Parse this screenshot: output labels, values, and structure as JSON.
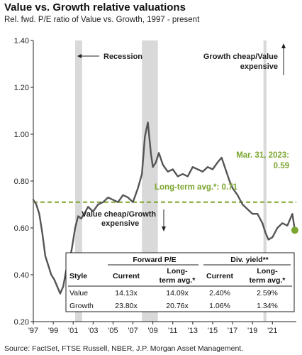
{
  "title": "Value vs. Growth relative valuations",
  "subtitle": "Rel. fwd. P/E ratio of Value vs. Growth, 1997 - present",
  "source": "Source: FactSet, FTSE Russell, NBER, J.P. Morgan Asset Management.",
  "colors": {
    "line": "#555555",
    "avg_line": "#7aa52e",
    "current_dot": "#7aa52e",
    "recession": "#d9d9d9",
    "axis": "#222222"
  },
  "annotations": {
    "recession": "Recession",
    "growth_cheap_1": "Growth cheap/Value",
    "growth_cheap_2": "expensive",
    "value_cheap_1": "Value cheap/Growth",
    "value_cheap_2": "expensive",
    "current_1": "Mar. 31, 2023:",
    "current_2": "0.59",
    "long_term_avg": "Long-term avg.*:  0.71"
  },
  "table": {
    "group_headers": [
      "Forward P/E",
      "Div. yield**"
    ],
    "col_headers": [
      "Style",
      "Current",
      "Long-",
      "term avg.*",
      "Current",
      "Long-",
      "term avg.*"
    ],
    "rows": [
      [
        "Value",
        "14.13x",
        "14.09x",
        "2.40%",
        "2.59%"
      ],
      [
        "Growth",
        "23.80x",
        "20.76x",
        "1.06%",
        "1.34%"
      ]
    ]
  },
  "chart_data": {
    "type": "line",
    "title": "Value vs. Growth relative valuations",
    "subtitle": "Rel. fwd. P/E ratio of Value vs. Growth, 1997 - present",
    "x_tick_labels": [
      "'97",
      "'99",
      "'01",
      "'03",
      "'05",
      "'07",
      "'09",
      "'11",
      "'13",
      "'15",
      "'17",
      "'19",
      "'21"
    ],
    "y_tick_labels": [
      "0.20",
      "0.40",
      "0.60",
      "0.80",
      "1.00",
      "1.20",
      "1.40"
    ],
    "xlim": [
      1997,
      2023.4
    ],
    "ylim": [
      0.2,
      1.4
    ],
    "recessions": [
      [
        2001.2,
        2001.9
      ],
      [
        2007.9,
        2009.5
      ],
      [
        2020.1,
        2020.4
      ]
    ],
    "long_term_avg": 0.71,
    "current": {
      "x": 2023.25,
      "y": 0.59
    },
    "series": [
      {
        "x": [
          1997.0,
          1997.3,
          1997.6,
          1997.9,
          1998.2,
          1998.5,
          1998.8,
          1999.1,
          1999.4,
          1999.7,
          2000.0,
          2000.3,
          2000.6,
          2000.9,
          2001.2,
          2001.5,
          2001.8,
          2002.1,
          2002.5,
          2003.0,
          2003.5,
          2004.0,
          2004.5,
          2005.0,
          2005.5,
          2006.0,
          2006.5,
          2007.0,
          2007.5,
          2007.9,
          2008.2,
          2008.5,
          2008.8,
          2009.0,
          2009.3,
          2009.6,
          2010.0,
          2010.5,
          2011.0,
          2011.5,
          2012.0,
          2012.5,
          2013.0,
          2013.5,
          2014.0,
          2014.5,
          2015.0,
          2015.5,
          2015.9,
          2016.3,
          2016.7,
          2017.0,
          2017.5,
          2018.0,
          2018.5,
          2019.0,
          2019.5,
          2020.0,
          2020.3,
          2020.6,
          2021.0,
          2021.5,
          2022.0,
          2022.5,
          2023.0,
          2023.25
        ],
        "y": [
          0.72,
          0.7,
          0.66,
          0.58,
          0.48,
          0.44,
          0.4,
          0.38,
          0.35,
          0.32,
          0.35,
          0.42,
          0.45,
          0.52,
          0.6,
          0.65,
          0.64,
          0.66,
          0.69,
          0.67,
          0.7,
          0.71,
          0.73,
          0.72,
          0.71,
          0.74,
          0.73,
          0.71,
          0.77,
          0.83,
          0.99,
          1.05,
          0.92,
          0.86,
          0.88,
          0.92,
          0.87,
          0.84,
          0.85,
          0.82,
          0.83,
          0.82,
          0.86,
          0.85,
          0.84,
          0.86,
          0.85,
          0.88,
          0.9,
          0.85,
          0.8,
          0.77,
          0.74,
          0.7,
          0.68,
          0.66,
          0.66,
          0.62,
          0.58,
          0.55,
          0.56,
          0.6,
          0.62,
          0.61,
          0.66,
          0.59
        ]
      }
    ]
  }
}
